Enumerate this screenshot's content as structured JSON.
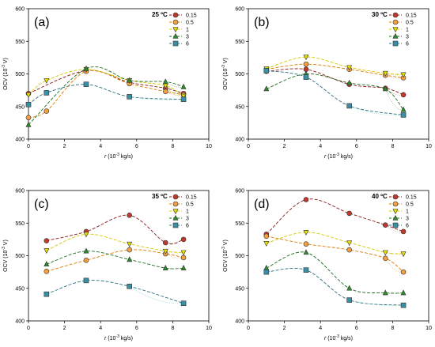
{
  "colors": {
    "0.15": "#8b1a1a",
    "0.5": "#e07b00",
    "1": "#d4c800",
    "3": "#1f6b1f",
    "6": "#2a6f7f"
  },
  "chart_data": [
    {
      "type": "line",
      "panel_label": "(a)",
      "temperature": "25 ºC",
      "xlabel_prefix": "r",
      "xlabel_unit": "(10",
      "xlabel_exp": "-3",
      "xlabel_tail": " kg/s)",
      "ylabel": "OCV (10",
      "ylabel_exp": "-3",
      "ylabel_tail": " V)",
      "xlim": [
        0,
        10
      ],
      "ylim": [
        400,
        600
      ],
      "xticks": [
        "0",
        "2",
        "4",
        "6",
        "8",
        "10"
      ],
      "yticks": [
        "400",
        "450",
        "500",
        "550",
        "600"
      ],
      "legend": [
        "0.15",
        "0.5",
        "1",
        "3",
        "6"
      ],
      "series": [
        {
          "name": "0.15",
          "x": [
            0,
            3.2,
            5.6,
            7.6,
            8.6
          ],
          "y": [
            470,
            505,
            487,
            478,
            470
          ]
        },
        {
          "name": "0.5",
          "x": [
            0,
            1,
            3.2,
            5.6,
            7.6,
            8.6
          ],
          "y": [
            433,
            443,
            504,
            485,
            473,
            468
          ]
        },
        {
          "name": "1",
          "x": [
            0,
            1,
            3.2,
            5.6,
            7.6,
            8.6
          ],
          "y": [
            468,
            490,
            507,
            490,
            482,
            466
          ]
        },
        {
          "name": "3",
          "x": [
            0,
            3.2,
            5.6,
            7.6,
            8.6
          ],
          "y": [
            422,
            508,
            490,
            488,
            480
          ]
        },
        {
          "name": "6",
          "x": [
            0,
            1,
            3.2,
            5.6,
            8.6
          ],
          "y": [
            453,
            471,
            484,
            465,
            461
          ]
        }
      ]
    },
    {
      "type": "line",
      "panel_label": "(b)",
      "temperature": "30 ºC",
      "xlabel_prefix": "r",
      "xlabel_unit": "(10",
      "xlabel_exp": "-3",
      "xlabel_tail": " kg/s)",
      "ylabel": "OCV (10",
      "ylabel_exp": "-3",
      "ylabel_tail": " V)",
      "xlim": [
        0,
        10
      ],
      "ylim": [
        400,
        600
      ],
      "xticks": [
        "0",
        "2",
        "4",
        "6",
        "8",
        "10"
      ],
      "yticks": [
        "400",
        "450",
        "500",
        "550",
        "600"
      ],
      "legend": [
        "0.15",
        "0.5",
        "1",
        "3",
        "6"
      ],
      "series": [
        {
          "name": "0.15",
          "x": [
            1,
            3.2,
            5.6,
            7.6,
            8.6
          ],
          "y": [
            504,
            507,
            484,
            478,
            468
          ]
        },
        {
          "name": "0.5",
          "x": [
            1,
            3.2,
            5.6,
            7.6,
            8.6
          ],
          "y": [
            507,
            515,
            507,
            498,
            494
          ]
        },
        {
          "name": "1",
          "x": [
            1,
            3.2,
            5.6,
            7.6,
            8.6
          ],
          "y": [
            508,
            526,
            510,
            501,
            499
          ]
        },
        {
          "name": "3",
          "x": [
            1,
            3.2,
            5.6,
            7.6,
            8.6
          ],
          "y": [
            477,
            500,
            486,
            477,
            445
          ]
        },
        {
          "name": "6",
          "x": [
            1,
            3.2,
            5.6,
            8.6
          ],
          "y": [
            505,
            495,
            451,
            437
          ]
        }
      ]
    },
    {
      "type": "line",
      "panel_label": "(c)",
      "temperature": "35 ºC",
      "xlabel_prefix": "r",
      "xlabel_unit": "(10",
      "xlabel_exp": "-3",
      "xlabel_tail": " kg/s)",
      "ylabel": "OCV (10",
      "ylabel_exp": "-3",
      "ylabel_tail": " V)",
      "xlim": [
        0,
        10
      ],
      "ylim": [
        400,
        600
      ],
      "xticks": [
        "0",
        "2",
        "4",
        "6",
        "8",
        "10"
      ],
      "yticks": [
        "400",
        "450",
        "500",
        "550",
        "600"
      ],
      "legend": [
        "0.15",
        "0.5",
        "1",
        "3",
        "6"
      ],
      "series": [
        {
          "name": "0.15",
          "x": [
            1,
            3.2,
            5.6,
            7.6,
            8.6
          ],
          "y": [
            523,
            537,
            562,
            520,
            525
          ]
        },
        {
          "name": "0.5",
          "x": [
            1,
            3.2,
            5.6,
            7.6,
            8.6
          ],
          "y": [
            476,
            493,
            509,
            503,
            497
          ]
        },
        {
          "name": "1",
          "x": [
            1,
            3.2,
            5.6,
            7.6,
            8.6
          ],
          "y": [
            508,
            533,
            518,
            507,
            505
          ]
        },
        {
          "name": "3",
          "x": [
            1,
            3.2,
            5.6,
            7.6,
            8.6
          ],
          "y": [
            487,
            507,
            494,
            481,
            481
          ]
        },
        {
          "name": "6",
          "x": [
            1,
            3.2,
            5.6,
            8.6
          ],
          "y": [
            441,
            462,
            453,
            427
          ]
        }
      ]
    },
    {
      "type": "line",
      "panel_label": "(d)",
      "temperature": "40 ºC",
      "xlabel_prefix": "r",
      "xlabel_unit": "(10",
      "xlabel_exp": "-3",
      "xlabel_tail": " kg/s)",
      "ylabel": "OCV (10",
      "ylabel_exp": "-3",
      "ylabel_tail": " V)",
      "xlim": [
        0,
        10
      ],
      "ylim": [
        400,
        600
      ],
      "xticks": [
        "0",
        "2",
        "4",
        "6",
        "8",
        "10"
      ],
      "yticks": [
        "400",
        "450",
        "500",
        "550",
        "600"
      ],
      "legend": [
        "0.15",
        "0.5",
        "1",
        "3",
        "6"
      ],
      "series": [
        {
          "name": "0.15",
          "x": [
            1,
            3.2,
            5.6,
            7.6,
            8.6
          ],
          "y": [
            533,
            586,
            565,
            547,
            537
          ]
        },
        {
          "name": "0.5",
          "x": [
            1,
            3.2,
            5.6,
            7.6,
            8.6
          ],
          "y": [
            530,
            518,
            509,
            496,
            475
          ]
        },
        {
          "name": "1",
          "x": [
            1,
            3.2,
            5.6,
            7.6,
            8.6
          ],
          "y": [
            519,
            536,
            520,
            505,
            503
          ]
        },
        {
          "name": "3",
          "x": [
            1,
            3.2,
            5.6,
            7.6,
            8.6
          ],
          "y": [
            481,
            505,
            450,
            443,
            443
          ]
        },
        {
          "name": "6",
          "x": [
            1,
            3.2,
            5.6,
            8.6
          ],
          "y": [
            475,
            478,
            432,
            424
          ]
        }
      ]
    }
  ]
}
